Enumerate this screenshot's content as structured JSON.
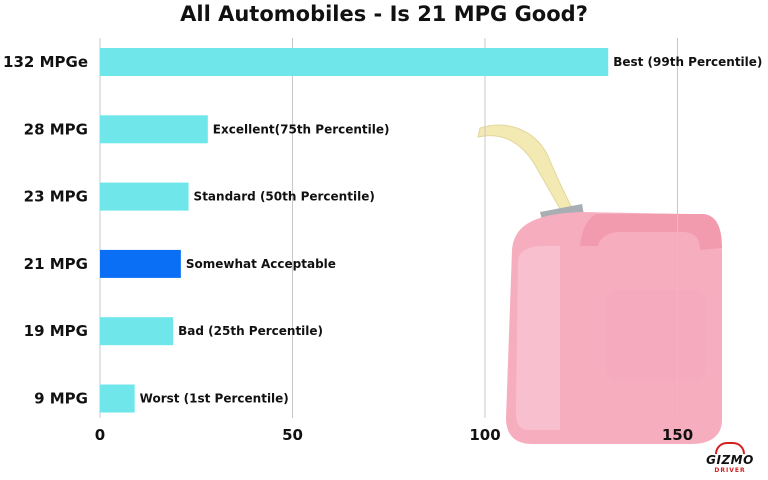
{
  "chart_data": {
    "type": "bar",
    "orientation": "horizontal",
    "title": "All Automobiles - Is 21 MPG Good?",
    "categories": [
      "132 MPGe",
      "28 MPG",
      "23 MPG",
      "21 MPG",
      "19 MPG",
      "9 MPG"
    ],
    "values": [
      132,
      28,
      23,
      21,
      19,
      9
    ],
    "data_labels": [
      "Best (99th Percentile)",
      "Excellent(75th Percentile)",
      "Standard (50th Percentile)",
      "Somewhat Acceptable",
      "Bad (25th Percentile)",
      "Worst (1st Percentile)"
    ],
    "highlight_index": 3,
    "xlim": [
      0,
      160
    ],
    "xticks": [
      0,
      50,
      100,
      150
    ],
    "grid": "vertical",
    "legend": "none",
    "colors": {
      "bar": "#6ee6ea",
      "highlight_bar": "#0a6ff5",
      "highlight_label": "#1a8ee8",
      "grid": "#c8c8c8"
    }
  },
  "background_image": {
    "icon": "gas-can-icon",
    "color": "#f5a0b4"
  },
  "watermark": {
    "main": "GIZMO",
    "sub": "DRIVER"
  }
}
